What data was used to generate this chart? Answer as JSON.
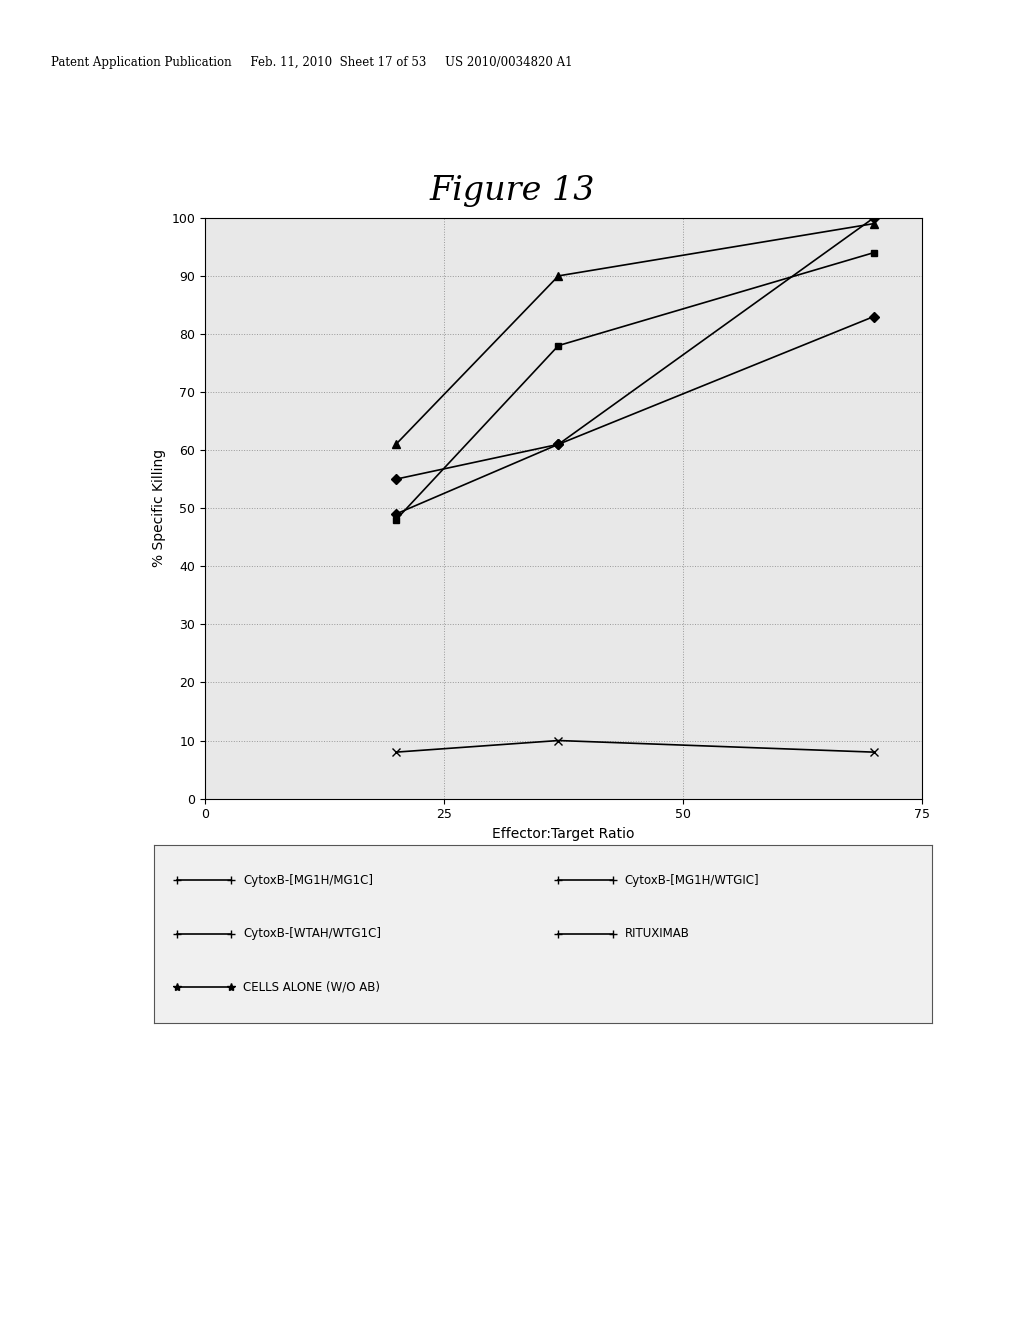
{
  "title": "Figure 13",
  "xlabel": "Effector:Target Ratio",
  "ylabel": "% Specific Killing",
  "xlim": [
    0,
    75
  ],
  "ylim": [
    0,
    100
  ],
  "xticks": [
    0,
    25,
    50,
    75
  ],
  "yticks": [
    0,
    10,
    20,
    30,
    40,
    50,
    60,
    70,
    80,
    90,
    100
  ],
  "plot_bg_color": "#e8e8e8",
  "paper_color": "#ffffff",
  "page_bg_color": "#c8c8c8",
  "header_text": "Patent Application Publication     Feb. 11, 2010  Sheet 17 of 53     US 2010/0034820 A1",
  "series": [
    {
      "label": "CytoxB-[MG1H/MG1C]",
      "x": [
        20,
        37,
        70
      ],
      "y": [
        55,
        61,
        100
      ],
      "marker": "D",
      "ms": 5
    },
    {
      "label": "CytoxB-[MG1H/WTGIC]",
      "x": [
        20,
        37,
        70
      ],
      "y": [
        48,
        78,
        94
      ],
      "marker": "s",
      "ms": 5
    },
    {
      "label": "CytoxB-[WTAH/WTG1C]",
      "x": [
        20,
        37,
        70
      ],
      "y": [
        61,
        90,
        99
      ],
      "marker": "^",
      "ms": 6
    },
    {
      "label": "RITUXIMAB",
      "x": [
        20,
        37,
        70
      ],
      "y": [
        49,
        61,
        83
      ],
      "marker": "D",
      "ms": 5
    },
    {
      "label": "CELLS ALONE (W/O AB)",
      "x": [
        20,
        37,
        70
      ],
      "y": [
        8,
        10,
        8
      ],
      "marker": "x",
      "ms": 6
    }
  ],
  "legend_items": [
    {
      "label": "CytoxB-[MG1H/MG1C]",
      "marker": "+",
      "col": 0,
      "row": 0
    },
    {
      "label": "CytoxB-[MG1H/WTGIC]",
      "marker": "+",
      "col": 1,
      "row": 0
    },
    {
      "label": "CytoxB-[WTAH/WTG1C]",
      "marker": "+",
      "col": 0,
      "row": 1
    },
    {
      "label": "RITUXIMAB",
      "marker": "+",
      "col": 1,
      "row": 1
    },
    {
      "label": "CELLS ALONE (W/O AB)",
      "marker": "*",
      "col": 0,
      "row": 2
    }
  ]
}
